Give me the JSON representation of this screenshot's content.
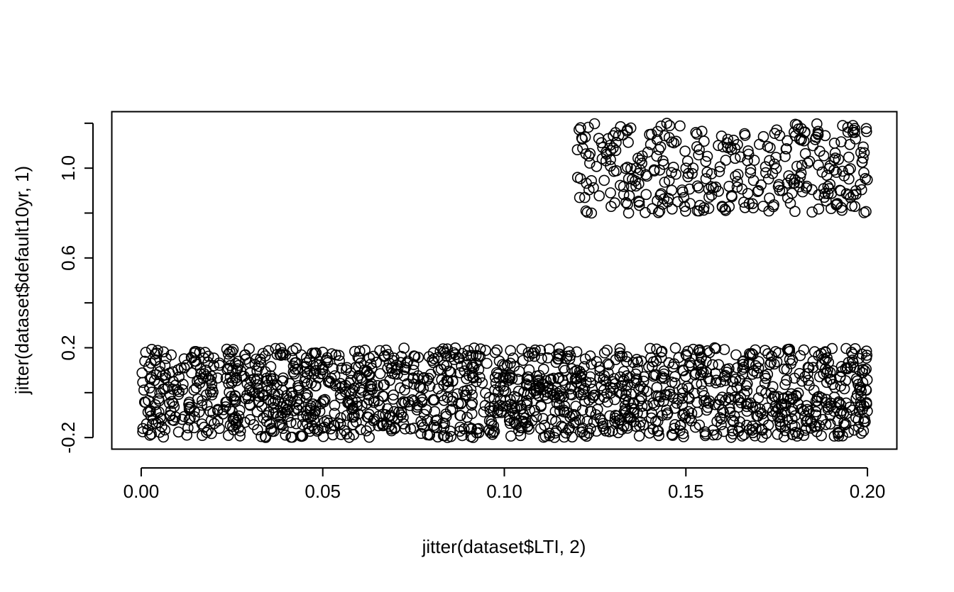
{
  "chart_data": {
    "type": "scatter",
    "title": "",
    "xlabel": "jitter(dataset$LTI, 2)",
    "ylabel": "jitter(dataset$default10yr, 1)",
    "xlim": [
      -0.008,
      0.208
    ],
    "ylim": [
      -0.25,
      1.25
    ],
    "x_ticks": [
      0.0,
      0.05,
      0.1,
      0.15,
      0.2
    ],
    "x_tick_labels": [
      "0.00",
      "0.05",
      "0.10",
      "0.15",
      "0.20"
    ],
    "y_ticks": [
      -0.2,
      0.0,
      0.2,
      0.4,
      0.6,
      0.8,
      1.0,
      1.2
    ],
    "y_tick_labels": [
      "-0.2",
      "",
      "0.2",
      "",
      "0.6",
      "",
      "1.0",
      ""
    ],
    "marker": "open-circle",
    "marker_color": "#000000",
    "grid": false,
    "legend": "none",
    "series": [
      {
        "name": "default10yr = 0",
        "x_range": [
          0.0,
          0.2
        ],
        "y_range": [
          -0.2,
          0.2
        ],
        "count": 1600,
        "points_sample": [
          [
            0.001,
            0.14
          ],
          [
            0.008,
            -0.01
          ],
          [
            0.02,
            0.12
          ],
          [
            0.03,
            -0.12
          ],
          [
            0.045,
            0.05
          ],
          [
            0.05,
            0.18
          ],
          [
            0.062,
            -0.17
          ],
          [
            0.075,
            0.1
          ],
          [
            0.088,
            -0.05
          ],
          [
            0.098,
            0.19
          ],
          [
            0.11,
            -0.16
          ],
          [
            0.118,
            0.15
          ],
          [
            0.13,
            0.02
          ],
          [
            0.14,
            -0.18
          ],
          [
            0.15,
            0.17
          ],
          [
            0.16,
            -0.02
          ],
          [
            0.17,
            0.11
          ],
          [
            0.18,
            -0.15
          ],
          [
            0.19,
            0.06
          ],
          [
            0.199,
            -0.13
          ]
        ]
      },
      {
        "name": "default10yr = 1",
        "x_range": [
          0.12,
          0.2
        ],
        "y_range": [
          0.8,
          1.2
        ],
        "count": 360,
        "points_sample": [
          [
            0.121,
            1.18
          ],
          [
            0.124,
            0.8
          ],
          [
            0.128,
            1.07
          ],
          [
            0.135,
            0.92
          ],
          [
            0.14,
            1.15
          ],
          [
            0.145,
            0.85
          ],
          [
            0.15,
            1.0
          ],
          [
            0.155,
            1.12
          ],
          [
            0.16,
            0.83
          ],
          [
            0.165,
            1.05
          ],
          [
            0.17,
            0.9
          ],
          [
            0.175,
            1.17
          ],
          [
            0.18,
            0.95
          ],
          [
            0.185,
            1.1
          ],
          [
            0.19,
            0.82
          ],
          [
            0.196,
            1.19
          ],
          [
            0.199,
            0.98
          ]
        ]
      }
    ]
  }
}
